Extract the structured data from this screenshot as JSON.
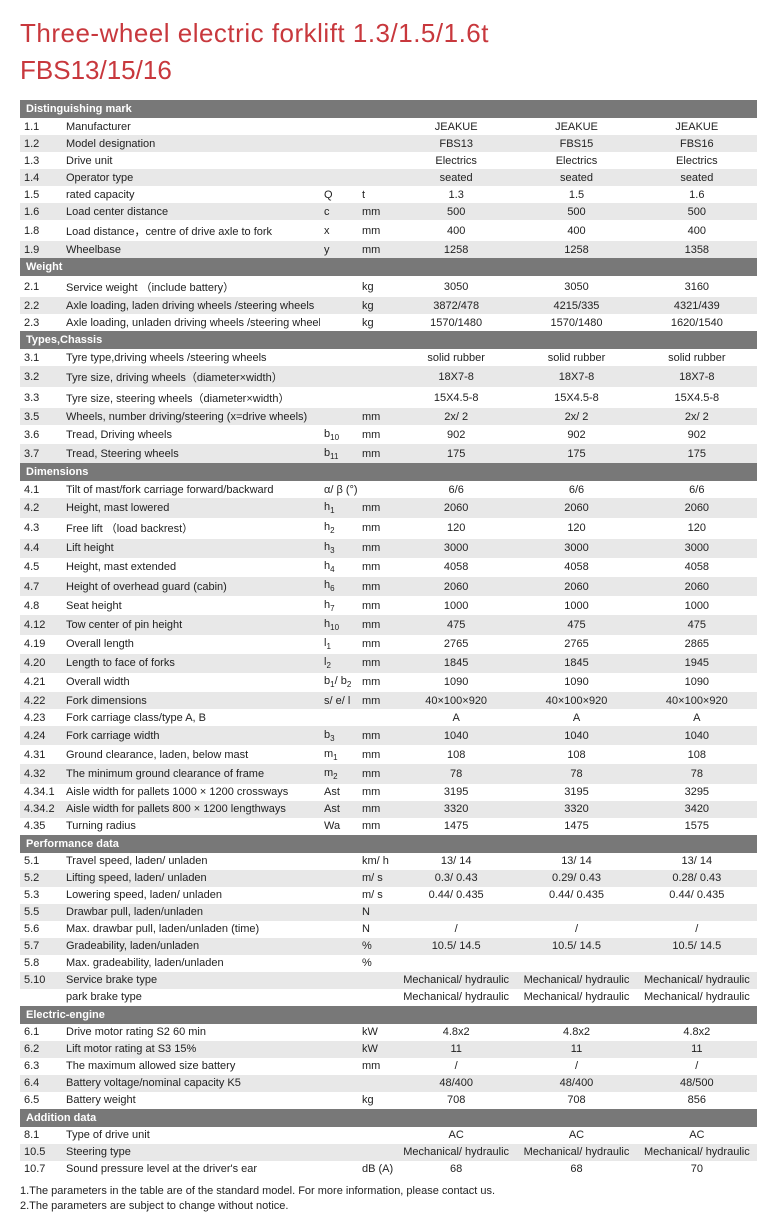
{
  "title": "Three-wheel electric forklift 1.3/1.5/1.6t",
  "model": "FBS13/15/16",
  "colors": {
    "accent": "#c8383d",
    "section_bg": "#787878",
    "row_alt": "#e8e8e8"
  },
  "footnotes": [
    "1.The parameters in the table are of the standard model.  For more information, please contact us.",
    "2.The parameters are subject to change without notice."
  ],
  "sections": [
    {
      "title": "Distinguishing mark",
      "rows": [
        {
          "id": "1.1",
          "name": "Manufacturer",
          "sym": "",
          "unit": "",
          "v": [
            "JEAKUE",
            "JEAKUE",
            "JEAKUE"
          ]
        },
        {
          "id": "1.2",
          "name": "Model designation",
          "sym": "",
          "unit": "",
          "v": [
            "FBS13",
            "FBS15",
            "FBS16"
          ]
        },
        {
          "id": "1.3",
          "name": "Drive unit",
          "sym": "",
          "unit": "",
          "v": [
            "Electrics",
            "Electrics",
            "Electrics"
          ]
        },
        {
          "id": "1.4",
          "name": "Operator type",
          "sym": "",
          "unit": "",
          "v": [
            "seated",
            "seated",
            "seated"
          ]
        },
        {
          "id": "1.5",
          "name": "rated capacity",
          "sym": "Q",
          "unit": "t",
          "v": [
            "1.3",
            "1.5",
            "1.6"
          ]
        },
        {
          "id": "1.6",
          "name": "Load center distance",
          "sym": "c",
          "unit": "mm",
          "v": [
            "500",
            "500",
            "500"
          ]
        },
        {
          "id": "1.8",
          "name": "Load distance，centre of drive axle to fork",
          "sym": "x",
          "unit": "mm",
          "v": [
            "400",
            "400",
            "400"
          ]
        },
        {
          "id": "1.9",
          "name": "Wheelbase",
          "sym": "y",
          "unit": "mm",
          "v": [
            "1258",
            "1258",
            "1358"
          ]
        }
      ]
    },
    {
      "title": "Weight",
      "rows": [
        {
          "id": "2.1",
          "name": "Service weight （include battery）",
          "sym": "",
          "unit": "kg",
          "v": [
            "3050",
            "3050",
            "3160"
          ]
        },
        {
          "id": "2.2",
          "name": "Axle loading, laden driving wheels /steering wheels",
          "sym": "",
          "unit": "kg",
          "v": [
            "3872/478",
            "4215/335",
            "4321/439"
          ]
        },
        {
          "id": "2.3",
          "name": "Axle loading, unladen  driving wheels /steering wheels",
          "sym": "",
          "unit": "kg",
          "v": [
            "1570/1480",
            "1570/1480",
            "1620/1540"
          ]
        }
      ]
    },
    {
      "title": "Types,Chassis",
      "rows": [
        {
          "id": "3.1",
          "name": "Tyre type,driving wheels /steering wheels",
          "sym": "",
          "unit": "",
          "v": [
            "solid rubber",
            "solid rubber",
            "solid rubber"
          ]
        },
        {
          "id": "3.2",
          "name": "Tyre size, driving wheels（diameter×width）",
          "sym": "",
          "unit": "",
          "v": [
            "18X7-8",
            "18X7-8",
            "18X7-8"
          ]
        },
        {
          "id": "3.3",
          "name": "Tyre size, steering wheels（diameter×width）",
          "sym": "",
          "unit": "",
          "v": [
            "15X4.5-8",
            "15X4.5-8",
            "15X4.5-8"
          ]
        },
        {
          "id": "3.5",
          "name": "Wheels, number driving/steering (x=drive wheels)",
          "sym": "",
          "unit": "mm",
          "v": [
            "2x/ 2",
            "2x/ 2",
            "2x/ 2"
          ]
        },
        {
          "id": "3.6",
          "name": "Tread, Driving wheels",
          "sym": "b10",
          "unit": "mm",
          "v": [
            "902",
            "902",
            "902"
          ]
        },
        {
          "id": "3.7",
          "name": "Tread, Steering wheels",
          "sym": "b11",
          "unit": "mm",
          "v": [
            "175",
            "175",
            "175"
          ]
        }
      ]
    },
    {
      "title": "Dimensions",
      "rows": [
        {
          "id": "4.1",
          "name": "Tilt of mast/fork carriage forward/backward",
          "sym": "α/ β (°)",
          "unit": "",
          "v": [
            "6/6",
            "6/6",
            "6/6"
          ]
        },
        {
          "id": "4.2",
          "name": "Height, mast lowered",
          "sym": "h1",
          "unit": "mm",
          "v": [
            "2060",
            "2060",
            "2060"
          ]
        },
        {
          "id": "4.3",
          "name": "Free lift （load backrest）",
          "sym": "h2",
          "unit": "mm",
          "v": [
            "120",
            "120",
            "120"
          ]
        },
        {
          "id": "4.4",
          "name": "Lift height",
          "sym": "h3",
          "unit": "mm",
          "v": [
            "3000",
            "3000",
            "3000"
          ]
        },
        {
          "id": "4.5",
          "name": "Height, mast extended",
          "sym": "h4",
          "unit": "mm",
          "v": [
            "4058",
            "4058",
            "4058"
          ]
        },
        {
          "id": "4.7",
          "name": "Height of overhead guard (cabin)",
          "sym": "h6",
          "unit": "mm",
          "v": [
            "2060",
            "2060",
            "2060"
          ]
        },
        {
          "id": "4.8",
          "name": "Seat height",
          "sym": "h7",
          "unit": "mm",
          "v": [
            "1000",
            "1000",
            "1000"
          ]
        },
        {
          "id": "4.12",
          "name": "Tow center of pin height",
          "sym": "h10",
          "unit": "mm",
          "v": [
            "475",
            "475",
            "475"
          ]
        },
        {
          "id": "4.19",
          "name": "Overall length",
          "sym": "l1",
          "unit": "mm",
          "v": [
            "2765",
            "2765",
            "2865"
          ]
        },
        {
          "id": "4.20",
          "name": "Length to face of forks",
          "sym": "l2",
          "unit": "mm",
          "v": [
            "1845",
            "1845",
            "1945"
          ]
        },
        {
          "id": "4.21",
          "name": "Overall width",
          "sym": "b1/ b2",
          "unit": "mm",
          "v": [
            "1090",
            "1090",
            "1090"
          ]
        },
        {
          "id": "4.22",
          "name": "Fork dimensions",
          "sym": "s/ e/ l",
          "unit": "mm",
          "v": [
            "40×100×920",
            "40×100×920",
            "40×100×920"
          ]
        },
        {
          "id": "4.23",
          "name": "Fork carriage class/type A, B",
          "sym": "",
          "unit": "",
          "v": [
            "A",
            "A",
            "A"
          ]
        },
        {
          "id": "4.24",
          "name": "Fork carriage width",
          "sym": "b3",
          "unit": "mm",
          "v": [
            "1040",
            "1040",
            "1040"
          ]
        },
        {
          "id": "4.31",
          "name": "Ground clearance, laden, below mast",
          "sym": "m1",
          "unit": "mm",
          "v": [
            "108",
            "108",
            "108"
          ]
        },
        {
          "id": "4.32",
          "name": "The minimum ground clearance of frame",
          "sym": "m2",
          "unit": "mm",
          "v": [
            "78",
            "78",
            "78"
          ]
        },
        {
          "id": "4.34.1",
          "name": "Aisle width for pallets 1000 × 1200 crossways",
          "sym": "Ast",
          "unit": "mm",
          "v": [
            "3195",
            "3195",
            "3295"
          ]
        },
        {
          "id": "4.34.2",
          "name": "Aisle width for pallets 800 × 1200 lengthways",
          "sym": "Ast",
          "unit": "mm",
          "v": [
            "3320",
            "3320",
            "3420"
          ]
        },
        {
          "id": "4.35",
          "name": "Turning radius",
          "sym": "Wa",
          "unit": "mm",
          "v": [
            "1475",
            "1475",
            "1575"
          ]
        }
      ]
    },
    {
      "title": "Performance data",
      "rows": [
        {
          "id": "5.1",
          "name": "Travel speed, laden/ unladen",
          "sym": "",
          "unit": "km/ h",
          "v": [
            "13/ 14",
            "13/ 14",
            "13/ 14"
          ]
        },
        {
          "id": "5.2",
          "name": "Lifting speed, laden/ unladen",
          "sym": "",
          "unit": "m/ s",
          "v": [
            "0.3/ 0.43",
            "0.29/ 0.43",
            "0.28/ 0.43"
          ]
        },
        {
          "id": "5.3",
          "name": "Lowering speed, laden/ unladen",
          "sym": "",
          "unit": "m/ s",
          "v": [
            "0.44/ 0.435",
            "0.44/ 0.435",
            "0.44/ 0.435"
          ]
        },
        {
          "id": "5.5",
          "name": "Drawbar pull, laden/unladen",
          "sym": "",
          "unit": "N",
          "v": [
            "",
            "",
            ""
          ]
        },
        {
          "id": "5.6",
          "name": "Max. drawbar pull, laden/unladen (time)",
          "sym": "",
          "unit": "N",
          "v": [
            "/",
            "/",
            "/"
          ]
        },
        {
          "id": "5.7",
          "name": "Gradeability, laden/unladen",
          "sym": "",
          "unit": "%",
          "v": [
            "10.5/ 14.5",
            "10.5/ 14.5",
            "10.5/ 14.5"
          ]
        },
        {
          "id": "5.8",
          "name": "Max. gradeability, laden/unladen",
          "sym": "",
          "unit": "%",
          "v": [
            "",
            "",
            ""
          ]
        },
        {
          "id": "5.10",
          "name": "Service brake type",
          "sym": "",
          "unit": "",
          "v": [
            "Mechanical/ hydraulic",
            "Mechanical/ hydraulic",
            "Mechanical/ hydraulic"
          ]
        },
        {
          "id": "",
          "name": "park brake type",
          "sym": "",
          "unit": "",
          "v": [
            "Mechanical/ hydraulic",
            "Mechanical/ hydraulic",
            "Mechanical/ hydraulic"
          ]
        }
      ]
    },
    {
      "title": "Electric-engine",
      "rows": [
        {
          "id": "6.1",
          "name": "Drive motor rating S2 60 min",
          "sym": "",
          "unit": "kW",
          "v": [
            "4.8x2",
            "4.8x2",
            "4.8x2"
          ]
        },
        {
          "id": "6.2",
          "name": "Lift motor rating at S3 15%",
          "sym": "",
          "unit": "kW",
          "v": [
            "11",
            "11",
            "11"
          ]
        },
        {
          "id": "6.3",
          "name": "The maximum allowed size battery",
          "sym": "",
          "unit": "mm",
          "v": [
            "/",
            "/",
            "/"
          ]
        },
        {
          "id": "6.4",
          "name": "Battery voltage/nominal capacity K5",
          "sym": "",
          "unit": "",
          "v": [
            "48/400",
            "48/400",
            "48/500"
          ]
        },
        {
          "id": "6.5",
          "name": "Battery weight",
          "sym": "",
          "unit": "kg",
          "v": [
            "708",
            "708",
            "856"
          ]
        }
      ]
    },
    {
      "title": "Addition data",
      "rows": [
        {
          "id": "8.1",
          "name": "Type of drive unit",
          "sym": "",
          "unit": "",
          "v": [
            "AC",
            "AC",
            "AC"
          ]
        },
        {
          "id": "10.5",
          "name": "Steering type",
          "sym": "",
          "unit": "",
          "v": [
            "Mechanical/ hydraulic",
            "Mechanical/ hydraulic",
            "Mechanical/ hydraulic"
          ]
        },
        {
          "id": "10.7",
          "name": "Sound pressure level at the driver's ear",
          "sym": "",
          "unit": "dB (A)",
          "v": [
            "68",
            "68",
            "70"
          ]
        }
      ]
    }
  ]
}
